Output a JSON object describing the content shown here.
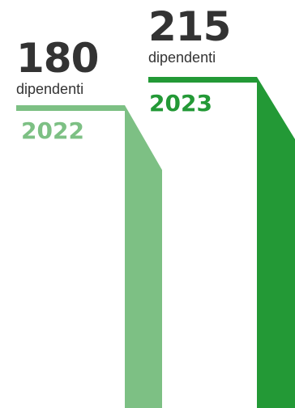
{
  "bars": [
    {
      "id": "2022",
      "count": "180",
      "unit": "dipendenti",
      "year": "2022",
      "color": "#7dc084"
    },
    {
      "id": "2023",
      "count": "215",
      "unit": "dipendenti",
      "year": "2023",
      "color": "#239936"
    }
  ],
  "text_color": "#333333"
}
